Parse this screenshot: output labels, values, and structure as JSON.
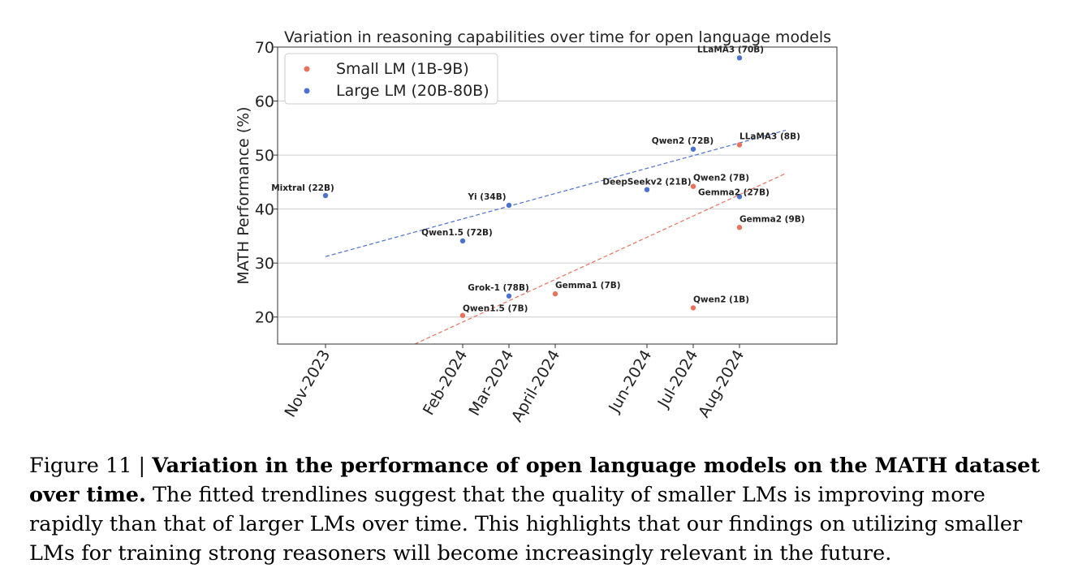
{
  "chart_data": {
    "type": "scatter",
    "title": "Variation in reasoning capabilities over time for open language models",
    "xlabel": "",
    "ylabel": "MATH Performance (%)",
    "ylim": [
      15,
      70
    ],
    "yticks": [
      20,
      30,
      40,
      50,
      60,
      70
    ],
    "x_ticks": [
      {
        "label": "Nov-2023",
        "date": "2023-11"
      },
      {
        "label": "Feb-2024",
        "date": "2024-02"
      },
      {
        "label": "Mar-2024",
        "date": "2024-03"
      },
      {
        "label": "April-2024",
        "date": "2024-04"
      },
      {
        "label": "Jun-2024",
        "date": "2024-06"
      },
      {
        "label": "Jul-2024",
        "date": "2024-07"
      },
      {
        "label": "Aug-2024",
        "date": "2024-08"
      }
    ],
    "grid": true,
    "legend_position": "top-left",
    "series": [
      {
        "name": "Small LM (1B-9B)",
        "color": "#e8735a",
        "points": [
          {
            "label": "Qwen1.5 (7B)",
            "date": "2024-02",
            "y": 20.3
          },
          {
            "label": "Gemma1 (7B)",
            "date": "2024-04",
            "y": 24.3
          },
          {
            "label": "Qwen2 (7B)",
            "date": "2024-07",
            "y": 44.2
          },
          {
            "label": "Qwen2 (1B)",
            "date": "2024-07",
            "y": 21.7
          },
          {
            "label": "LLaMA3 (8B)",
            "date": "2024-08",
            "y": 51.9
          },
          {
            "label": "Gemma2 (9B)",
            "date": "2024-08",
            "y": 36.6
          }
        ],
        "trend": {
          "from": {
            "date": "2024-01",
            "y": 15
          },
          "to": {
            "date": "2024-09",
            "y": 46.6
          }
        }
      },
      {
        "name": "Large LM (20B-80B)",
        "color": "#4c72d0",
        "points": [
          {
            "label": "Mixtral (22B)",
            "date": "2023-11",
            "y": 42.5
          },
          {
            "label": "Qwen1.5 (72B)",
            "date": "2024-02",
            "y": 34.1
          },
          {
            "label": "Yi (34B)",
            "date": "2024-03",
            "y": 40.7
          },
          {
            "label": "Grok-1 (78B)",
            "date": "2024-03",
            "y": 23.9
          },
          {
            "label": "DeepSeekv2 (21B)",
            "date": "2024-06",
            "y": 43.6
          },
          {
            "label": "Qwen2 (72B)",
            "date": "2024-07",
            "y": 51.1
          },
          {
            "label": "LLaMA3 (70B)",
            "date": "2024-08",
            "y": 68.0
          },
          {
            "label": "Gemma2 (27B)",
            "date": "2024-08",
            "y": 42.3
          }
        ],
        "trend": {
          "from": {
            "date": "2023-11",
            "y": 31.2
          },
          "to": {
            "date": "2024-09",
            "y": 54.6
          }
        }
      }
    ]
  },
  "caption": {
    "prefix": "Figure 11 | ",
    "bold": "Variation in the performance of open language models on the MATH dataset over time.",
    "text": " The fitted trendlines suggest that the quality of smaller LMs is improving more rapidly than that of larger LMs over time. This highlights that our findings on utilizing smaller LMs for training strong reasoners will become increasingly relevant in the future."
  }
}
